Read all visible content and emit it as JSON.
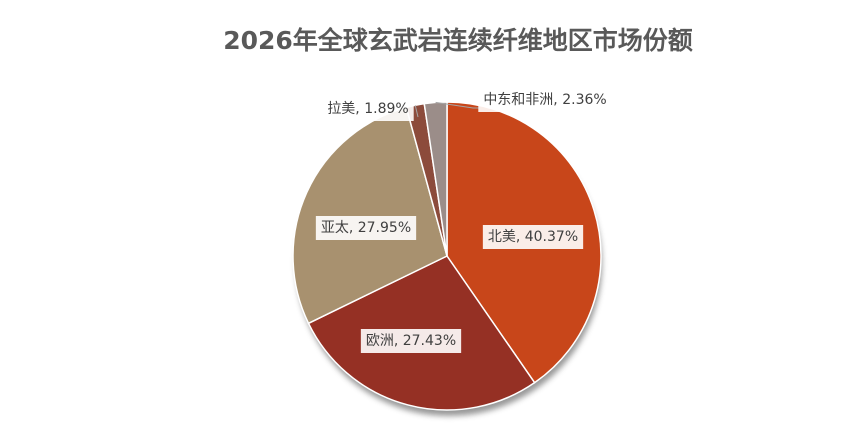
{
  "chart_data": {
    "type": "pie",
    "title": "2026年全球玄武岩连续纤维地区市场份额",
    "categories": [
      "北美",
      "欧洲",
      "亚太",
      "拉美",
      "中东和非洲"
    ],
    "values": [
      40.37,
      27.43,
      27.95,
      1.89,
      2.36
    ],
    "value_labels": [
      "北美, 40.37%",
      "欧洲, 27.43%",
      "亚太, 27.95%",
      "拉美, 1.89%",
      "中东和非洲, 2.36%"
    ],
    "colors": [
      "#c8461a",
      "#953024",
      "#a8916f",
      "#8c4b3b",
      "#9b8d89"
    ]
  }
}
